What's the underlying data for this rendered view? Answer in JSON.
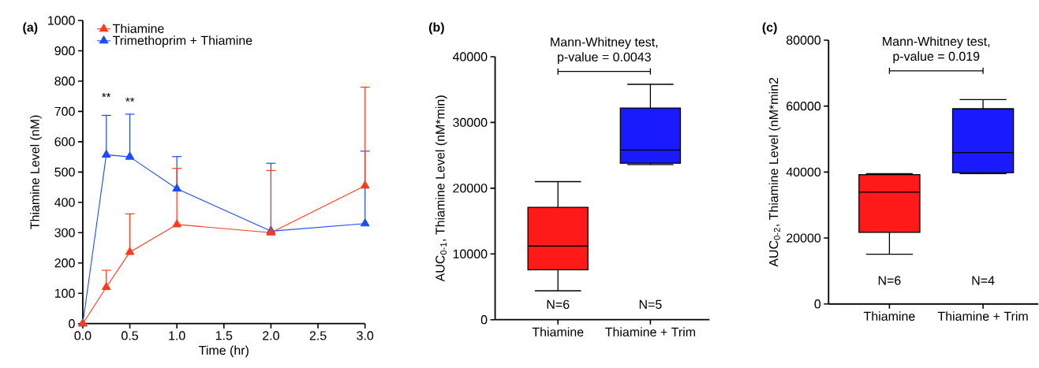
{
  "chart_data": [
    {
      "type": "line",
      "title": "(a)",
      "xlabel": "Time (hr)",
      "ylabel": "Thiamine Level (nM)",
      "xlim": [
        0,
        3
      ],
      "ylim": [
        0,
        1000
      ],
      "xticks": [
        {
          "value": 0,
          "label": "0.0"
        },
        {
          "value": 0.5,
          "label": "0.5"
        },
        {
          "value": 1,
          "label": "1.0"
        },
        {
          "value": 1.5,
          "label": "1.5"
        },
        {
          "value": 2,
          "label": "2.0"
        },
        {
          "value": 2.5,
          "label": "2.5"
        },
        {
          "value": 3,
          "label": "3.0"
        }
      ],
      "yticks": [
        0,
        100,
        200,
        300,
        400,
        500,
        600,
        700,
        800,
        900,
        1000
      ],
      "legend": "top left",
      "marker": "triangle",
      "line_style": "solid",
      "series": [
        {
          "name": "Thiamine",
          "color": "#ff3a1c",
          "x": [
            0,
            0.25,
            0.5,
            1,
            2,
            3
          ],
          "values": [
            0,
            120,
            236,
            327,
            300,
            455
          ],
          "errors": [
            null,
            [
              120,
              176
            ],
            [
              236,
              362
            ],
            [
              327,
              512
            ],
            [
              300,
              505
            ],
            [
              455,
              780
            ]
          ]
        },
        {
          "name": "Trimethoprim + Thiamine",
          "color": "#1e4bff",
          "x": [
            0,
            0.25,
            0.5,
            1,
            2,
            3
          ],
          "values": [
            0,
            557,
            550,
            445,
            305,
            330
          ],
          "errors": [
            null,
            [
              557,
              687
            ],
            [
              550,
              691
            ],
            [
              445,
              551
            ],
            [
              305,
              529
            ],
            [
              330,
              569
            ]
          ]
        }
      ],
      "annotations": [
        "**",
        "**"
      ]
    },
    {
      "type": "box",
      "title": "(b)",
      "ylabel": "AUC$_{0-1}$, Thiamine Level (nM*min)",
      "categories": [
        "Thiamine",
        "Thiamine + Trim"
      ],
      "ylim": [
        0,
        40000
      ],
      "yticks": [
        0,
        10000,
        20000,
        30000,
        40000
      ],
      "colors": [
        "#ff1a1a",
        "#1a1aff"
      ],
      "boxes": [
        {
          "low": 4400,
          "q1": 7600,
          "median": 11200,
          "q3": 17100,
          "high": 21000
        },
        {
          "low": 23600,
          "q1": 23800,
          "median": 25800,
          "q3": 32200,
          "high": 35800
        }
      ],
      "annotations": [
        "Mann-Whitney test,",
        "p-value = 0.0043",
        "N=6",
        "N=5"
      ]
    },
    {
      "type": "box",
      "title": "(c)",
      "ylabel": "AUC$_{0-2}$, Thiamine Level (nM*min2",
      "categories": [
        "Thiamine",
        "Thiamine + Trim"
      ],
      "ylim": [
        0,
        80000
      ],
      "yticks": [
        0,
        20000,
        40000,
        60000,
        80000
      ],
      "colors": [
        "#ff1a1a",
        "#1a1aff"
      ],
      "boxes": [
        {
          "low": 15100,
          "q1": 21700,
          "median": 33900,
          "q3": 39200,
          "high": 39500
        },
        {
          "low": 39500,
          "q1": 39800,
          "median": 45900,
          "q3": 59200,
          "high": 62000
        }
      ],
      "annotations": [
        "Mann-Whitney test,",
        "p-value = 0.019",
        "N=6",
        "N=4"
      ]
    }
  ]
}
